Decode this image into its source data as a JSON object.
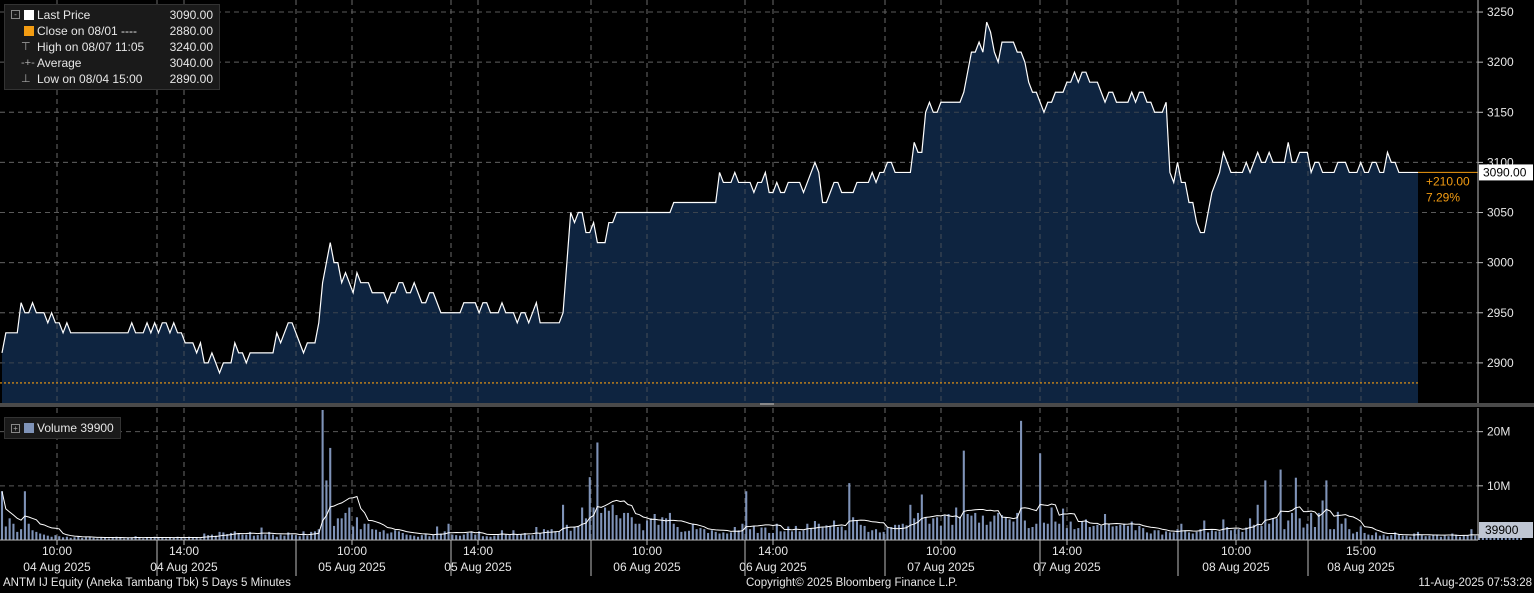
{
  "legend": {
    "last_price_label": "Last Price",
    "last_price_value": "3090.00",
    "close_label": "Close on 08/01 ----",
    "close_value": "2880.00",
    "high_label": "High on 08/07 11:05",
    "high_value": "3240.00",
    "average_label": "Average",
    "average_value": "3040.00",
    "low_label": "Low on 08/04 15:00",
    "low_value": "2890.00"
  },
  "volume_legend": {
    "label": "Volume 39900"
  },
  "change": {
    "abs": "+210.00",
    "pct": "7.29%"
  },
  "last_price_tag": "3090.00",
  "volume_tag": "39900",
  "footer": {
    "left": "ANTM IJ Equity (Aneka Tambang Tbk) 5 Days 5 Minutes",
    "center": "Copyright© 2025 Bloomberg Finance L.P.",
    "right": "11-Aug-2025 07:53:28"
  },
  "colors": {
    "background": "#000000",
    "line": "#ffffff",
    "area": "#0e2440",
    "close_line": "#f39c12",
    "volume": "#7f93b8"
  },
  "chart_data": {
    "type": "area",
    "title": "ANTM IJ Equity (Aneka Tambang Tbk) 5 Days 5 Minutes",
    "price_axis": {
      "ticks": [
        2900,
        2950,
        3000,
        3050,
        3100,
        3150,
        3200,
        3250
      ],
      "ylim": [
        2860,
        3262
      ]
    },
    "volume_axis": {
      "ticks": [
        10000000,
        20000000
      ],
      "tick_labels": [
        "10M",
        "20M"
      ],
      "ylim": [
        0,
        24000000
      ]
    },
    "x_ticks": [
      {
        "time": "10:00",
        "date": "04 Aug 2025"
      },
      {
        "time": "14:00",
        "date": "04 Aug 2025"
      },
      {
        "time": "10:00",
        "date": "05 Aug 2025"
      },
      {
        "time": "14:00",
        "date": "05 Aug 2025"
      },
      {
        "time": "10:00",
        "date": "06 Aug 2025"
      },
      {
        "time": "14:00",
        "date": "06 Aug 2025"
      },
      {
        "time": "10:00",
        "date": "07 Aug 2025"
      },
      {
        "time": "14:00",
        "date": "07 Aug 2025"
      },
      {
        "time": "10:00",
        "date": "08 Aug 2025"
      },
      {
        "time": "15:00",
        "date": "08 Aug 2025"
      }
    ],
    "close_reference": 2880,
    "price_series": {
      "name": "Last Price",
      "values": [
        2910,
        2930,
        2930,
        2930,
        2930,
        2960,
        2950,
        2950,
        2960,
        2950,
        2950,
        2950,
        2940,
        2950,
        2940,
        2940,
        2930,
        2940,
        2930,
        2930,
        2930,
        2930,
        2930,
        2930,
        2930,
        2930,
        2930,
        2930,
        2930,
        2930,
        2930,
        2930,
        2930,
        2930,
        2940,
        2930,
        2930,
        2930,
        2940,
        2930,
        2940,
        2930,
        2940,
        2940,
        2930,
        2940,
        2930,
        2930,
        2920,
        2920,
        2920,
        2910,
        2920,
        2900,
        2900,
        2910,
        2900,
        2890,
        2900,
        2900,
        2900,
        2920,
        2910,
        2910,
        2900,
        2910,
        2910,
        2910,
        2910,
        2910,
        2910,
        2910,
        2930,
        2920,
        2930,
        2940,
        2940,
        2930,
        2920,
        2910,
        2920,
        2920,
        2920,
        2940,
        2980,
        3000,
        3020,
        3000,
        3000,
        2980,
        2990,
        2980,
        2970,
        2990,
        2980,
        2980,
        2980,
        2970,
        2970,
        2970,
        2970,
        2960,
        2970,
        2970,
        2980,
        2980,
        2970,
        2970,
        2980,
        2970,
        2960,
        2960,
        2970,
        2970,
        2960,
        2950,
        2950,
        2950,
        2950,
        2950,
        2950,
        2960,
        2960,
        2960,
        2960,
        2950,
        2960,
        2960,
        2950,
        2950,
        2950,
        2960,
        2950,
        2950,
        2950,
        2940,
        2950,
        2950,
        2940,
        2950,
        2960,
        2940,
        2940,
        2940,
        2940,
        2940,
        2940,
        2950,
        3000,
        3050,
        3040,
        3050,
        3050,
        3030,
        3030,
        3040,
        3020,
        3020,
        3020,
        3040,
        3040,
        3050,
        3050,
        3050,
        3050,
        3050,
        3050,
        3050,
        3050,
        3050,
        3050,
        3050,
        3050,
        3050,
        3050,
        3050,
        3060,
        3060,
        3060,
        3060,
        3060,
        3060,
        3060,
        3060,
        3060,
        3060,
        3060,
        3060,
        3090,
        3080,
        3080,
        3080,
        3090,
        3080,
        3080,
        3080,
        3080,
        3070,
        3080,
        3080,
        3090,
        3070,
        3070,
        3080,
        3070,
        3070,
        3080,
        3080,
        3080,
        3080,
        3070,
        3080,
        3090,
        3100,
        3090,
        3060,
        3060,
        3070,
        3080,
        3080,
        3070,
        3070,
        3070,
        3070,
        3080,
        3080,
        3080,
        3080,
        3090,
        3080,
        3090,
        3090,
        3100,
        3100,
        3090,
        3090,
        3090,
        3090,
        3090,
        3120,
        3110,
        3110,
        3150,
        3160,
        3150,
        3150,
        3160,
        3160,
        3160,
        3160,
        3160,
        3160,
        3170,
        3190,
        3210,
        3210,
        3220,
        3210,
        3240,
        3230,
        3210,
        3200,
        3220,
        3220,
        3220,
        3220,
        3210,
        3210,
        3200,
        3180,
        3170,
        3170,
        3160,
        3150,
        3160,
        3160,
        3170,
        3170,
        3170,
        3180,
        3180,
        3190,
        3180,
        3190,
        3190,
        3180,
        3180,
        3180,
        3170,
        3160,
        3170,
        3170,
        3160,
        3160,
        3160,
        3160,
        3170,
        3160,
        3170,
        3170,
        3160,
        3160,
        3150,
        3150,
        3150,
        3160,
        3090,
        3080,
        3100,
        3080,
        3080,
        3060,
        3060,
        3040,
        3030,
        3030,
        3050,
        3070,
        3080,
        3090,
        3110,
        3100,
        3090,
        3090,
        3090,
        3090,
        3100,
        3090,
        3100,
        3110,
        3100,
        3100,
        3110,
        3100,
        3100,
        3100,
        3100,
        3120,
        3100,
        3100,
        3110,
        3110,
        3110,
        3090,
        3100,
        3100,
        3090,
        3090,
        3090,
        3090,
        3100,
        3100,
        3100,
        3090,
        3090,
        3090,
        3100,
        3090,
        3090,
        3100,
        3100,
        3090,
        3090,
        3110,
        3100,
        3100,
        3090,
        3090,
        3090,
        3090,
        3090,
        3090
      ]
    },
    "volume_series": {
      "name": "Volume",
      "values": [
        9000000,
        2500000,
        4000000,
        3000000,
        1500000,
        2000000,
        9000000,
        3000000,
        1800000,
        1500000,
        1200000,
        1000000,
        800000,
        600000,
        900000,
        700000,
        500000,
        600000,
        400000,
        500000,
        700000,
        400000,
        500000,
        600000,
        400000,
        300000,
        500000,
        400000,
        300000,
        400000,
        600000,
        500000,
        300000,
        400000,
        500000,
        700000,
        400000,
        300000,
        500000,
        400000,
        600000,
        500000,
        400000,
        300000,
        500000,
        400000,
        600000,
        500000,
        300000,
        600000,
        400000,
        500000,
        300000,
        1200000,
        900000,
        1000000,
        800000,
        1500000,
        1400000,
        1100000,
        1300000,
        1600000,
        1200000,
        1000000,
        1000000,
        1500000,
        800000,
        900000,
        2300000,
        1000000,
        1500000,
        1000000,
        600000,
        1000000,
        800000,
        1400000,
        1000000,
        900000,
        700000,
        1600000,
        800000,
        1500000,
        1600000,
        2000000,
        24000000,
        11000000,
        17000000,
        2600000,
        4000000,
        4000000,
        5000000,
        6000000,
        2500000,
        4200000,
        2000000,
        3000000,
        3000000,
        2000000,
        1900000,
        1500000,
        1800000,
        1200000,
        1400000,
        1800000,
        1600000,
        1300000,
        1000000,
        900000,
        800000,
        600000,
        900000,
        1100000,
        700000,
        900000,
        2500000,
        1200000,
        1600000,
        3000000,
        1000000,
        900000,
        800000,
        1000000,
        1300000,
        1600000,
        1000000,
        1600000,
        700000,
        700000,
        600000,
        800000,
        900000,
        1800000,
        1000000,
        900000,
        1800000,
        1000000,
        1000000,
        1300000,
        900000,
        900000,
        2400000,
        1300000,
        2000000,
        1800000,
        2000000,
        1600000,
        1600000,
        6500000,
        2800000,
        1700000,
        2500000,
        2600000,
        6000000,
        4000000,
        11600000,
        6000000,
        18000000,
        5000000,
        6000000,
        5400000,
        6500000,
        4600000,
        4000000,
        5000000,
        5000000,
        4200000,
        3000000,
        3000000,
        1800000,
        3600000,
        4000000,
        4800000,
        2800000,
        4200000,
        4000000,
        5000000,
        3000000,
        2400000,
        1500000,
        1600000,
        1700000,
        3000000,
        2000000,
        2200000,
        2000000,
        1300000,
        1800000,
        1500000,
        1200000,
        1400000,
        1200000,
        1400000,
        2400000,
        1800000,
        3000000,
        9000000,
        2000000,
        2500000,
        1300000,
        2300000,
        2300000,
        1300000,
        1300000,
        3000000,
        1600000,
        1600000,
        2500000,
        1600000,
        2600000,
        1600000,
        1800000,
        3000000,
        2200000,
        3500000,
        3000000,
        2300000,
        2700000,
        2600000,
        3600000,
        2400000,
        2500000,
        1800000,
        10500000,
        4200000,
        3500000,
        2800000,
        2600000,
        1500000,
        1800000,
        2000000,
        1400000,
        1500000,
        2300000,
        2400000,
        2800000,
        2800000,
        3000000,
        2700000,
        6500000,
        4000000,
        5000000,
        8400000,
        4200000,
        3000000,
        4000000,
        4200000,
        2600000,
        4500000,
        4800000,
        2800000,
        6000000,
        4300000,
        16500000,
        4800000,
        4500000,
        5000000,
        3200000,
        4500000,
        2800000,
        3400000,
        4500000,
        5000000,
        4600000,
        4200000,
        3800000,
        3400000,
        5000000,
        22000000,
        3600000,
        2200000,
        2400000,
        3000000,
        16000000,
        3200000,
        3000000,
        6000000,
        3400000,
        3000000,
        5800000,
        2200000,
        3400000,
        2000000,
        2200000,
        3400000,
        3800000,
        2400000,
        2600000,
        2800000,
        2600000,
        4800000,
        3000000,
        2500000,
        2600000,
        2800000,
        3000000,
        2600000,
        3400000,
        1800000,
        2600000,
        2200000,
        1400000,
        1200000,
        1800000,
        1800000,
        1000000,
        1600000,
        1400000,
        1400000,
        2000000,
        3000000,
        1800000,
        1400000,
        1200000,
        1500000,
        2000000,
        3600000,
        1400000,
        1800000,
        1600000,
        1600000,
        3800000,
        2400000,
        1800000,
        2000000,
        2000000,
        1500000,
        2300000,
        4000000,
        2800000,
        6500000,
        2600000,
        11000000,
        3000000,
        4000000,
        4000000,
        13000000,
        2000000,
        3600000,
        5000000,
        11500000,
        4000000,
        2300000,
        3000000,
        5000000,
        2400000,
        5000000,
        7300000,
        11000000,
        2000000,
        2000000,
        5200000,
        3000000,
        4000000,
        2000000,
        1200000,
        1500000,
        2500000,
        1300000,
        1000000,
        900000,
        1400000,
        800000,
        1000000,
        700000,
        900000,
        1400000,
        1000000,
        800000,
        800000,
        600000,
        1200000,
        1500000,
        900000,
        700000,
        800000,
        1000000,
        1000000,
        600000,
        800000,
        700000,
        1200000,
        1000000,
        600000,
        900000,
        800000,
        2000000,
        800000,
        1000000,
        700000,
        1300000,
        1300000,
        1000000,
        2000000,
        2500000,
        1000000,
        1500000,
        700000,
        1300000,
        1800000
      ]
    }
  }
}
